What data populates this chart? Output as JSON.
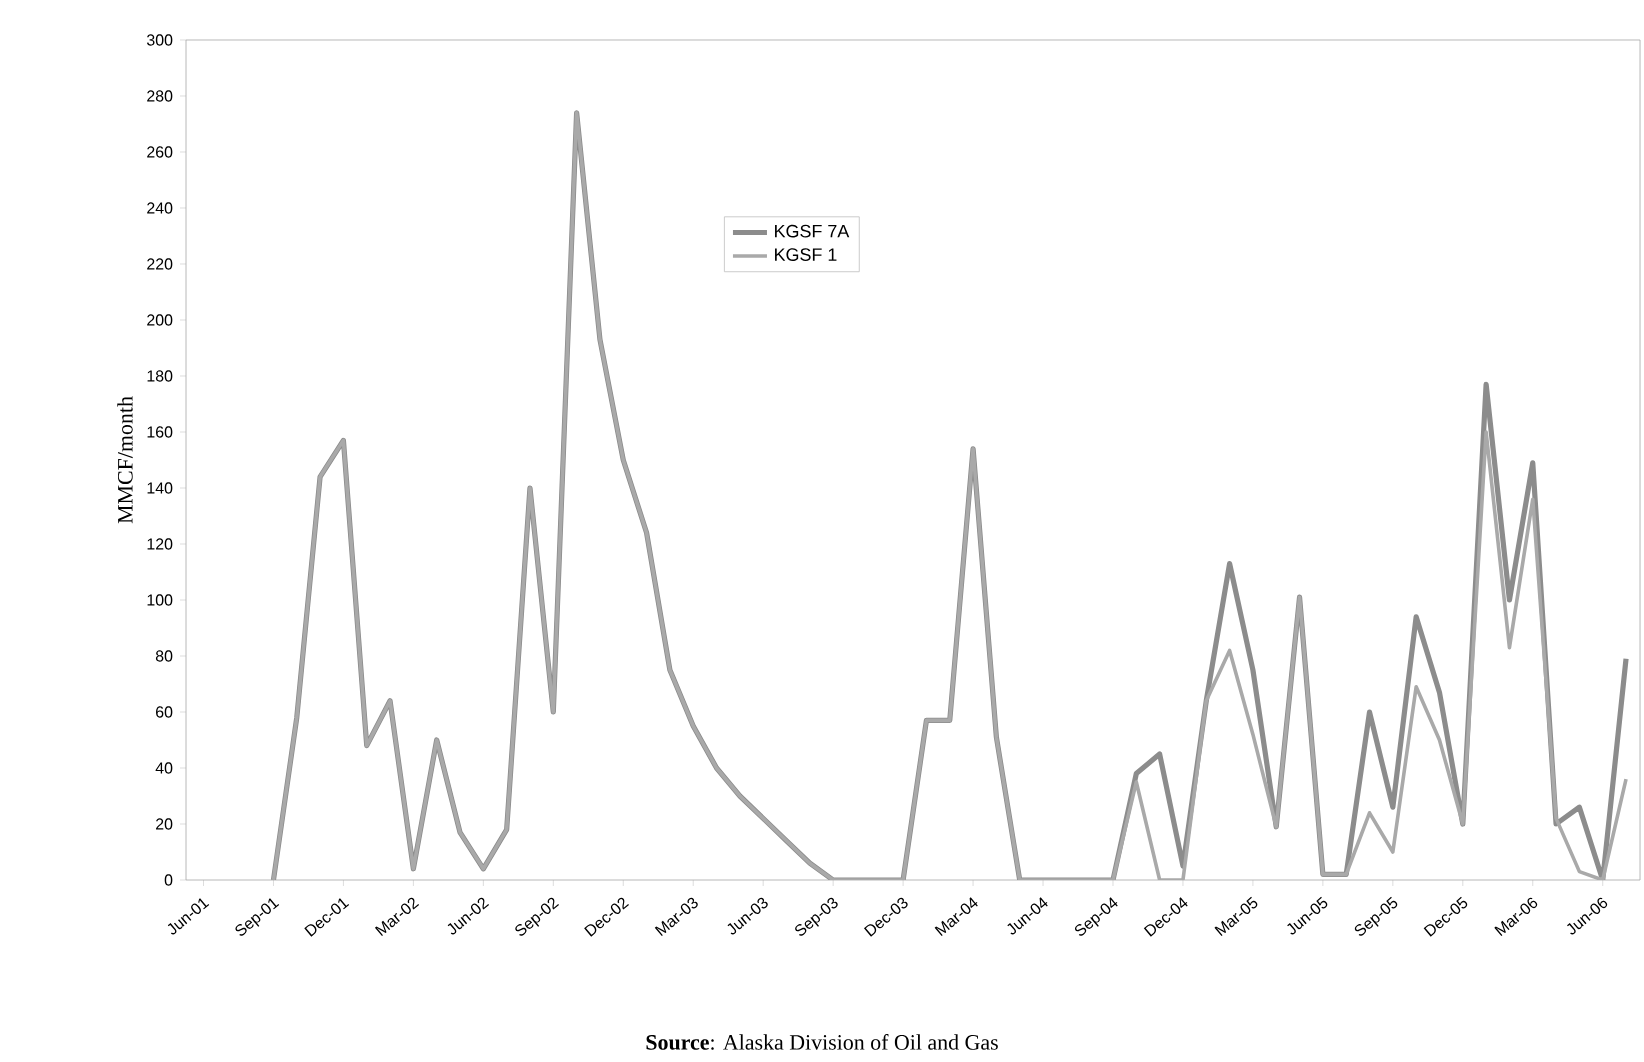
{
  "chart_data": {
    "type": "line",
    "ylabel": "MMCF/month",
    "annotations": [
      "**Source**: Alaska Division of Oil and Gas"
    ],
    "categories": [
      "Jun-01",
      null,
      null,
      "Sep-01",
      null,
      null,
      "Dec-01",
      null,
      null,
      "Mar-02",
      null,
      null,
      "Jun-02",
      null,
      null,
      "Sep-02",
      null,
      null,
      "Dec-02",
      null,
      null,
      "Mar-03",
      null,
      null,
      "Jun-03",
      null,
      null,
      "Sep-03",
      null,
      null,
      "Dec-03",
      null,
      null,
      "Mar-04",
      null,
      null,
      "Jun-04",
      null,
      null,
      "Sep-04",
      null,
      null,
      "Dec-04",
      null,
      null,
      "Mar-05",
      null,
      null,
      "Jun-05",
      null,
      null,
      "Sep-05",
      null,
      null,
      "Dec-05",
      null,
      null,
      "Mar-06",
      null,
      null,
      "Jun-06",
      null
    ],
    "series": [
      {
        "name": "KGSF 7A",
        "color": "#8c8c8c",
        "values": [
          null,
          null,
          null,
          0,
          58,
          144,
          157,
          48,
          64,
          4,
          50,
          17,
          4,
          18,
          140,
          60,
          274,
          193,
          150,
          124,
          75,
          55,
          40,
          30,
          22,
          14,
          6,
          0,
          0,
          0,
          0,
          57,
          57,
          154,
          51,
          0,
          0,
          0,
          0,
          0,
          38,
          45,
          5,
          64,
          113,
          75,
          19,
          101,
          2,
          2,
          60,
          26,
          94,
          67,
          20,
          177,
          100,
          149,
          20,
          26,
          0,
          79
        ]
      },
      {
        "name": "KGSF 1",
        "color": "#a9a9a9",
        "values": [
          null,
          null,
          null,
          0,
          58,
          144,
          157,
          48,
          64,
          4,
          50,
          17,
          4,
          18,
          140,
          60,
          274,
          193,
          150,
          124,
          75,
          55,
          40,
          30,
          22,
          14,
          6,
          0,
          0,
          0,
          0,
          57,
          57,
          154,
          51,
          0,
          0,
          0,
          0,
          0,
          35,
          0,
          0,
          64,
          82,
          52,
          19,
          101,
          2,
          2,
          24,
          10,
          69,
          50,
          20,
          160,
          83,
          136,
          22,
          3,
          0,
          36
        ]
      }
    ],
    "ylim": [
      0,
      300
    ],
    "yticks": [
      0,
      20,
      40,
      60,
      80,
      100,
      120,
      140,
      160,
      180,
      200,
      220,
      240,
      260,
      280,
      300
    ],
    "legend": "top",
    "marker": "none",
    "line_style": "solid",
    "grid": false
  }
}
